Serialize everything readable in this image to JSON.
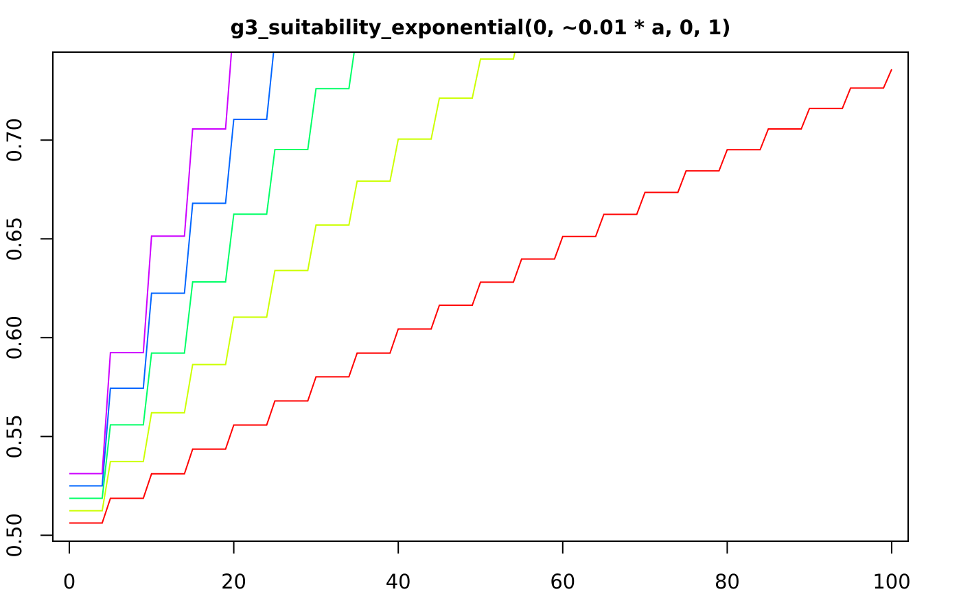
{
  "chart_data": {
    "type": "line",
    "title": "g3_suitability_exponential(0, ~0.01 * a, 0, 1)",
    "xlabel": "",
    "ylabel": "",
    "xlim": [
      -2,
      102
    ],
    "ylim": [
      0.497,
      0.7445
    ],
    "x_ticks": [
      0,
      20,
      40,
      60,
      80,
      100
    ],
    "x_tick_labels": [
      "0",
      "20",
      "40",
      "60",
      "80",
      "100"
    ],
    "y_ticks": [
      0.5,
      0.55,
      0.6,
      0.65,
      0.7
    ],
    "y_tick_labels": [
      "0.50",
      "0.55",
      "0.60",
      "0.65",
      "0.70"
    ],
    "grid": false,
    "legend": "none",
    "step_width": 5,
    "series": [
      {
        "color": "#ff0000",
        "x": [
          0,
          5,
          10,
          15,
          20,
          25,
          30,
          35,
          40,
          45,
          50,
          55,
          60,
          65,
          70,
          75,
          80,
          85,
          90,
          95,
          100
        ],
        "values": [
          0.5062,
          0.5187,
          0.5311,
          0.5436,
          0.5558,
          0.568,
          0.5802,
          0.5922,
          0.6044,
          0.6164,
          0.6281,
          0.6398,
          0.6512,
          0.6624,
          0.6735,
          0.6844,
          0.6951,
          0.7056,
          0.716,
          0.7263,
          0.7358
        ]
      },
      {
        "color": "#ccff00",
        "x": [
          0,
          5,
          10,
          15,
          20,
          25,
          30,
          35,
          40,
          45,
          50,
          55
        ],
        "values": [
          0.5124,
          0.5373,
          0.562,
          0.5864,
          0.6104,
          0.634,
          0.657,
          0.6792,
          0.7005,
          0.7212,
          0.741,
          0.76
        ]
      },
      {
        "color": "#00ff66",
        "x": [
          0,
          5,
          10,
          15,
          20,
          25,
          30,
          35
        ],
        "values": [
          0.5187,
          0.5559,
          0.5922,
          0.6282,
          0.6625,
          0.6952,
          0.726,
          0.755
        ]
      },
      {
        "color": "#0066ff",
        "x": [
          0,
          5,
          10,
          15,
          20,
          25
        ],
        "values": [
          0.525,
          0.5744,
          0.6225,
          0.668,
          0.7105,
          0.751
        ]
      },
      {
        "color": "#cc00ff",
        "x": [
          0,
          5,
          10,
          15,
          20
        ],
        "values": [
          0.5312,
          0.5924,
          0.6514,
          0.7056,
          0.76
        ]
      }
    ]
  }
}
